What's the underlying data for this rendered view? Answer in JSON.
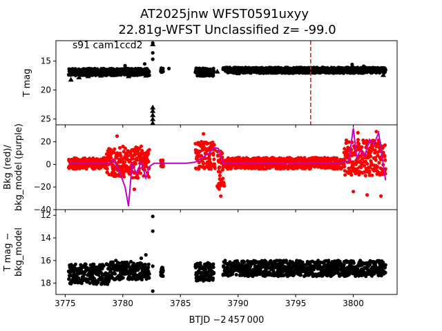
{
  "title_line1": "AT2025jnw  WFST0591uxyy",
  "title_line2": "22.81g-WFST Unclassified z= -99.0",
  "colors": {
    "point": "#000000",
    "bkg_raw": "#ff0000",
    "bkg_model": "#bf00bf",
    "vline": "#d62728"
  },
  "chart_data": [
    {
      "type": "scatter",
      "panel": "top",
      "annotation": "s91 cam1ccd2",
      "ylabel": "T mag",
      "ylim": [
        26,
        11.5
      ],
      "yticks": [
        15,
        20,
        25
      ],
      "xlim": [
        3774.2,
        3803.8
      ],
      "vline_x": 3796.3,
      "segments": [
        {
          "x0": 3775.3,
          "x1": 3782.3,
          "y": 16.9,
          "spread": 0.6
        },
        {
          "x0": 3783.3,
          "x1": 3783.5,
          "y": 16.6,
          "spread": 0.4
        },
        {
          "x0": 3786.3,
          "x1": 3787.9,
          "y": 16.9,
          "spread": 0.7
        },
        {
          "x0": 3788.7,
          "x1": 3802.8,
          "y": 16.6,
          "spread": 0.5
        }
      ],
      "triangles": [
        {
          "x": 3775.5,
          "y": 18.2
        },
        {
          "x": 3776.2,
          "y": 17.8
        },
        {
          "x": 3777.0,
          "y": 17.6
        },
        {
          "x": 3778.1,
          "y": 17.5
        },
        {
          "x": 3779.3,
          "y": 17.4
        },
        {
          "x": 3780.5,
          "y": 17.6
        },
        {
          "x": 3781.4,
          "y": 17.3
        },
        {
          "x": 3782.0,
          "y": 17.5
        },
        {
          "x": 3788.2,
          "y": 16.8
        },
        {
          "x": 3790.0,
          "y": 17.1
        },
        {
          "x": 3793.0,
          "y": 17.0
        },
        {
          "x": 3796.0,
          "y": 17.0
        },
        {
          "x": 3799.0,
          "y": 16.9
        },
        {
          "x": 3801.8,
          "y": 16.8
        },
        {
          "x": 3802.6,
          "y": 17.4
        },
        {
          "x": 3782.6,
          "y": 23.0
        },
        {
          "x": 3782.6,
          "y": 23.6
        },
        {
          "x": 3782.6,
          "y": 24.3
        },
        {
          "x": 3782.6,
          "y": 25.0
        },
        {
          "x": 3782.6,
          "y": 25.7
        },
        {
          "x": 3782.6,
          "y": 12.1
        }
      ],
      "outliers": [
        {
          "x": 3782.6,
          "y": 11.9
        },
        {
          "x": 3782.6,
          "y": 13.6
        },
        {
          "x": 3782.6,
          "y": 14.7
        },
        {
          "x": 3781.9,
          "y": 15.5
        },
        {
          "x": 3780.2,
          "y": 15.8
        },
        {
          "x": 3799.9,
          "y": 15.6
        },
        {
          "x": 3800.9,
          "y": 15.9
        },
        {
          "x": 3784.0,
          "y": 16.3
        }
      ]
    },
    {
      "type": "line",
      "panel": "middle",
      "ylabel_line1": "Bkg (red)/",
      "ylabel_line2": "bkg_model (purple)",
      "ylim": [
        -40,
        35
      ],
      "yticks": [
        -40,
        -20,
        0,
        20
      ],
      "series": [
        {
          "x": [
            3775.3,
            3778.8,
            3779.2,
            3779.7,
            3780.2,
            3780.5,
            3780.8,
            3781.2,
            3781.6,
            3782.0,
            3782.3,
            3782.7,
            3783.5,
            3785.5,
            3786.3,
            3787.5,
            3787.9,
            3788.3,
            3788.7,
            3789.5,
            3792.5,
            3795.5,
            3798.5,
            3799.6,
            3800.0,
            3800.3,
            3800.6,
            3801.0,
            3801.4,
            3801.8,
            3802.2,
            3802.8
          ],
          "y": [
            1,
            1,
            4,
            -6,
            -20,
            -37,
            0,
            -8,
            2,
            -12,
            -2,
            1,
            1,
            1,
            2,
            10,
            15,
            14,
            1,
            1,
            1,
            1,
            1,
            3,
            32,
            6,
            12,
            8,
            22,
            18,
            28,
            -14
          ]
        }
      ],
      "raw_segments": [
        {
          "x0": 3775.3,
          "x1": 3778.6,
          "y": 1,
          "spread": 5
        },
        {
          "x0": 3778.6,
          "x1": 3782.3,
          "y": 2,
          "spread": 14
        },
        {
          "x0": 3783.3,
          "x1": 3783.5,
          "y": 1,
          "spread": 3
        },
        {
          "x0": 3786.3,
          "x1": 3788.0,
          "y": 8,
          "spread": 12
        },
        {
          "x0": 3788.2,
          "x1": 3788.8,
          "y": -5,
          "spread": 18
        },
        {
          "x0": 3788.8,
          "x1": 3799.2,
          "y": 1,
          "spread": 5
        },
        {
          "x0": 3799.2,
          "x1": 3802.8,
          "y": 6,
          "spread": 16
        }
      ],
      "raw_extremes": [
        {
          "x": 3779.5,
          "y": 25
        },
        {
          "x": 3781.0,
          "y": -22
        },
        {
          "x": 3781.6,
          "y": 16
        },
        {
          "x": 3787.0,
          "y": 27
        },
        {
          "x": 3788.5,
          "y": -28
        },
        {
          "x": 3800.4,
          "y": 28
        },
        {
          "x": 3801.2,
          "y": -27
        },
        {
          "x": 3802.4,
          "y": -28
        },
        {
          "x": 3800.0,
          "y": -24
        },
        {
          "x": 3802.0,
          "y": 29
        }
      ]
    },
    {
      "type": "scatter",
      "panel": "bottom",
      "ylabel_line1": "T mag −",
      "ylabel_line2": "bkg_model",
      "ylim": [
        19,
        11.5
      ],
      "yticks": [
        12,
        14,
        16,
        18
      ],
      "xlabel": "BTJD −2 457 000",
      "xticks": [
        3775,
        3780,
        3785,
        3790,
        3795,
        3800
      ],
      "segments": [
        {
          "x0": 3775.3,
          "x1": 3778.8,
          "y": 17.2,
          "spread": 0.9
        },
        {
          "x0": 3778.8,
          "x1": 3782.3,
          "y": 16.9,
          "spread": 0.8
        },
        {
          "x0": 3783.3,
          "x1": 3783.5,
          "y": 17.0,
          "spread": 0.4
        },
        {
          "x0": 3786.3,
          "x1": 3787.9,
          "y": 17.0,
          "spread": 0.8
        },
        {
          "x0": 3788.7,
          "x1": 3802.8,
          "y": 16.7,
          "spread": 0.7
        }
      ],
      "outliers": [
        {
          "x": 3782.6,
          "y": 12.1
        },
        {
          "x": 3782.6,
          "y": 13.4
        },
        {
          "x": 3782.6,
          "y": 18.7
        },
        {
          "x": 3782.0,
          "y": 15.5
        },
        {
          "x": 3781.6,
          "y": 15.8
        },
        {
          "x": 3779.4,
          "y": 16.0
        },
        {
          "x": 3800.6,
          "y": 16.0
        },
        {
          "x": 3801.4,
          "y": 16.2
        },
        {
          "x": 3782.6,
          "y": 16.5
        }
      ]
    }
  ]
}
